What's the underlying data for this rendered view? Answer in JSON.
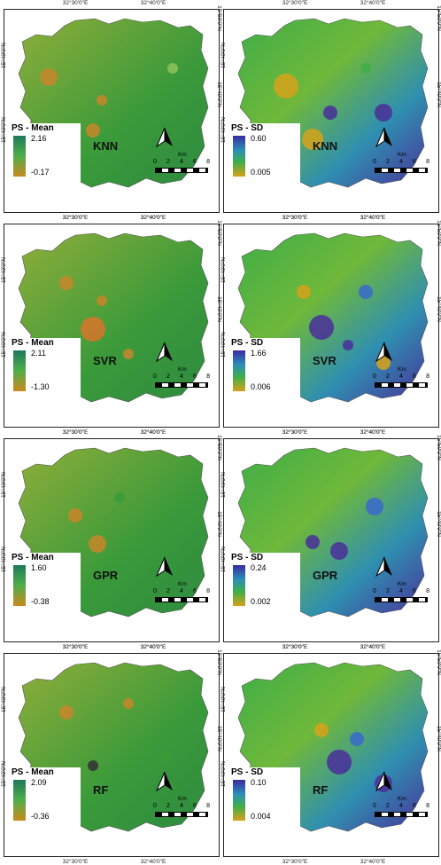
{
  "coords": {
    "lon_left": "32°30'0\"E",
    "lon_right": "32°40'0\"E",
    "lat_top": "15°50'0\"N",
    "lat_bottom": "15°40'0\"N"
  },
  "scale": {
    "unit": "Km",
    "labels": [
      "0",
      "2",
      "4",
      "6",
      "8"
    ]
  },
  "colors": {
    "mean_high": "#1f7a5a",
    "mean_low": "#c98a1e",
    "sd_high": "#3a2aa0",
    "sd_mid": "#3fae48",
    "sd_low": "#d6a21a",
    "map_green": "#3a9a3a",
    "map_orange": "#c8862a",
    "map_purple": "#4a2f9a"
  },
  "panels": [
    {
      "id": "knn-mean",
      "title": "PS - Mean",
      "max": "2.16",
      "min": "-0.17",
      "model": "KNN",
      "type": "mean"
    },
    {
      "id": "knn-sd",
      "title": "PS - SD",
      "max": "0.60",
      "min": "0.005",
      "model": "KNN",
      "type": "sd"
    },
    {
      "id": "svr-mean",
      "title": "PS - Mean",
      "max": "2.11",
      "min": "-1.30",
      "model": "SVR",
      "type": "mean"
    },
    {
      "id": "svr-sd",
      "title": "PS - SD",
      "max": "1.66",
      "min": "0.006",
      "model": "SVR",
      "type": "sd"
    },
    {
      "id": "gpr-mean",
      "title": "PS - Mean",
      "max": "1.60",
      "min": "-0.38",
      "model": "GPR",
      "type": "mean"
    },
    {
      "id": "gpr-sd",
      "title": "PS - SD",
      "max": "0.24",
      "min": "0.002",
      "model": "GPR",
      "type": "sd"
    },
    {
      "id": "rf-mean",
      "title": "PS - Mean",
      "max": "2.09",
      "min": "-0.36",
      "model": "RF",
      "type": "mean"
    },
    {
      "id": "rf-sd",
      "title": "PS - SD",
      "max": "0.10",
      "min": "0.004",
      "model": "RF",
      "type": "sd"
    }
  ]
}
